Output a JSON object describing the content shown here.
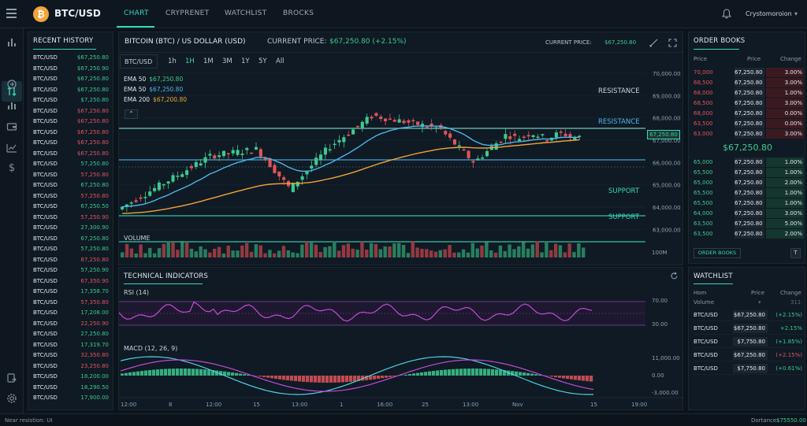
{
  "topbar": {
    "brand": "BTC/USD",
    "logo_glyph": "₿",
    "tabs": [
      "CHART",
      "CRYPRENET",
      "WATCHLIST",
      "BROCKS"
    ],
    "active_tab": 0,
    "user": "Crystomoroion"
  },
  "history": {
    "title": "RECENT HISTORY",
    "rows": [
      {
        "sym": "BTC/USD",
        "price": "$67,250.80",
        "dir": "up"
      },
      {
        "sym": "BTC/USD",
        "price": "$67,250.90",
        "dir": "up"
      },
      {
        "sym": "BTC/USD",
        "price": "$67,250.80",
        "dir": "up"
      },
      {
        "sym": "BTC/USD",
        "price": "$67,250.80",
        "dir": "up"
      },
      {
        "sym": "BTC/USD",
        "price": "$7,250.80",
        "dir": "up"
      },
      {
        "sym": "BTC/USD",
        "price": "$67,250.80",
        "dir": "down"
      },
      {
        "sym": "BTC/USD",
        "price": "$67,250.80",
        "dir": "down"
      },
      {
        "sym": "BTC/USD",
        "price": "$67,250.80",
        "dir": "down"
      },
      {
        "sym": "BTC/USD",
        "price": "$67,250.80",
        "dir": "down"
      },
      {
        "sym": "BTC/USD",
        "price": "$67,250.80",
        "dir": "down"
      },
      {
        "sym": "BTC/USD",
        "price": "57,250.80",
        "dir": "up"
      },
      {
        "sym": "BTC/USD",
        "price": "57,250.80",
        "dir": "down"
      },
      {
        "sym": "BTC/USD",
        "price": "67,250.80",
        "dir": "up"
      },
      {
        "sym": "BTC/USD",
        "price": "57,250.80",
        "dir": "down"
      },
      {
        "sym": "BTC/USD",
        "price": "67,250.50",
        "dir": "up"
      },
      {
        "sym": "BTC/USD",
        "price": "57,250.90",
        "dir": "down"
      },
      {
        "sym": "BTC/USD",
        "price": "27,300.90",
        "dir": "up"
      },
      {
        "sym": "BTC/USD",
        "price": "67,250.80",
        "dir": "up"
      },
      {
        "sym": "BTC/USD",
        "price": "57,250.80",
        "dir": "up"
      },
      {
        "sym": "BTC/USD",
        "price": "87,250.80",
        "dir": "down"
      },
      {
        "sym": "BTC/USD",
        "price": "57,250.90",
        "dir": "up"
      },
      {
        "sym": "BTC/USD",
        "price": "67,350.90",
        "dir": "down"
      },
      {
        "sym": "BTC/USD",
        "price": "17,358.70",
        "dir": "up"
      },
      {
        "sym": "BTC/USD",
        "price": "57,350.80",
        "dir": "down"
      },
      {
        "sym": "BTC/USD",
        "price": "17,208.00",
        "dir": "up"
      },
      {
        "sym": "BTC/USD",
        "price": "22,250.90",
        "dir": "down"
      },
      {
        "sym": "BTC/USD",
        "price": "27,250.80",
        "dir": "up"
      },
      {
        "sym": "BTC/USD",
        "price": "17,319.70",
        "dir": "up"
      },
      {
        "sym": "BTC/USD",
        "price": "32,350.80",
        "dir": "down"
      },
      {
        "sym": "BTC/USD",
        "price": "23,250.80",
        "dir": "down"
      },
      {
        "sym": "BTC/USD",
        "price": "18,200.00",
        "dir": "up"
      },
      {
        "sym": "BTC/USD",
        "price": "18,290.50",
        "dir": "up"
      },
      {
        "sym": "BTC/USD",
        "price": "17,900.00",
        "dir": "up"
      }
    ]
  },
  "chart": {
    "pair_title": "BITCOIN (BTC) / US DOLLAR (USD)",
    "current_price_label": "CURRENT PRICE:",
    "current_price_value": "$67,250.80 (+2.15%)",
    "current_price_label_right": "CURRENT PRICE:",
    "current_price_value_right": "$67,250.80",
    "symbol_box": "BTC/USD",
    "timeframes": [
      "1h",
      "1H",
      "1M",
      "3M",
      "1Y",
      "5Y",
      "All"
    ],
    "active_timeframe": 1,
    "ema_legend": [
      {
        "label": "EMA 50",
        "value": "$67,250.80",
        "color": "#3ec98f"
      },
      {
        "label": "EMA 50",
        "value": "$67,250.80",
        "color": "#4fb5e8"
      },
      {
        "label": "EMA 200",
        "value": "$67,200.80",
        "color": "#f2a33a"
      }
    ],
    "level_labels": [
      "RESISTANCE",
      "RESISTANCE",
      "SUPPORT",
      "SUPPORT"
    ],
    "price_tag": "67,250.80",
    "volume_label": "VOLUME",
    "volume_axis": "100M",
    "y_ticks": [
      "70,000.00",
      "69,000.00",
      "68,000.00",
      "67,000.00",
      "66,000.00",
      "65,000.00",
      "64,000.00",
      "63,000.00"
    ],
    "x_ticks": [
      "12:00",
      "8",
      "12:00",
      "15",
      "13:00",
      "1",
      "16:00",
      "25",
      "13:00",
      "Nov",
      "15",
      "19:00"
    ]
  },
  "indicators": {
    "title": "TECHNICAL INDICATORS",
    "rsi_label": "RSI (14)",
    "rsi_ticks": [
      "70.00",
      "30.00"
    ],
    "macd_label": "MACD (12, 26, 9)",
    "macd_ticks": [
      "11,000.00",
      "0.00",
      "-3,000.00"
    ]
  },
  "orderbook": {
    "title": "ORDER BOOKS",
    "headers": [
      "Price",
      "Price",
      "Change"
    ],
    "asks": [
      {
        "p": "70,000",
        "q": "67,250.80",
        "c": "3.00%"
      },
      {
        "p": "68,500",
        "q": "67,250.80",
        "c": "3.00%"
      },
      {
        "p": "68,000",
        "q": "67,250.80",
        "c": "1.00%"
      },
      {
        "p": "68,500",
        "q": "67,250.80",
        "c": "3.00%"
      },
      {
        "p": "68,000",
        "q": "67,250.80",
        "c": "0.00%"
      },
      {
        "p": "63,500",
        "q": "67,250.80",
        "c": "0.00%"
      },
      {
        "p": "63,000",
        "q": "67,250.80",
        "c": "3.00%"
      }
    ],
    "mid_price": "$67,250.80",
    "bids": [
      {
        "p": "65,000",
        "q": "67,250.80",
        "c": "1.00%"
      },
      {
        "p": "65,500",
        "q": "67,250.80",
        "c": "1.00%"
      },
      {
        "p": "65,000",
        "q": "67,250.80",
        "c": "2.00%"
      },
      {
        "p": "65,500",
        "q": "67,250.80",
        "c": "1.00%"
      },
      {
        "p": "65,500",
        "q": "67,250.80",
        "c": "1.00%"
      },
      {
        "p": "64,000",
        "q": "67,250.80",
        "c": "3.00%"
      },
      {
        "p": "63,500",
        "q": "67,250.80",
        "c": "5.00%"
      },
      {
        "p": "63,500",
        "q": "67,250.80",
        "c": "2.00%"
      }
    ],
    "button": "ORDER BOOKS",
    "t_button": "T"
  },
  "watchlist": {
    "title": "WATCHLIST",
    "headers": [
      "Hom",
      "Price",
      "Change"
    ],
    "subheader_left": "Volume",
    "subheader_right": "311",
    "rows": [
      {
        "sym": "BTC/USD",
        "price": "$67,250.80",
        "chg": "(+2.15%)",
        "dir": "up"
      },
      {
        "sym": "BTC/USD",
        "price": "$67,250.80",
        "chg": "+2.15%",
        "dir": "up"
      },
      {
        "sym": "BTC/USD",
        "price": "$7,750.80",
        "chg": "(+1.85%)",
        "dir": "up"
      },
      {
        "sym": "BTC/USD",
        "price": "$67,250.80",
        "chg": "(+2.15%)",
        "dir": "down"
      },
      {
        "sym": "BTC/USD",
        "price": "$7,750.80",
        "chg": "(+0.61%)",
        "dir": "up"
      }
    ]
  },
  "status": {
    "left": "Near resistion: UI",
    "right_label": "Dortance:",
    "right_value": "$75550.00"
  },
  "colors": {
    "accent": "#37d6b6",
    "up": "#3ec98f",
    "down": "#e2545b",
    "ema_blue": "#4fb5e8",
    "ema_orange": "#f2a33a",
    "rsi": "#c44ad8"
  },
  "icons": [
    "menu-icon",
    "bitcoin-logo-icon",
    "bell-icon",
    "chevron-down-icon",
    "bar-chart-icon",
    "swap-icon",
    "refresh-icon",
    "stats-icon",
    "wallet-icon",
    "line-chart-icon",
    "dollar-icon",
    "export-icon",
    "settings-icon",
    "draw-icon",
    "fullscreen-icon"
  ]
}
